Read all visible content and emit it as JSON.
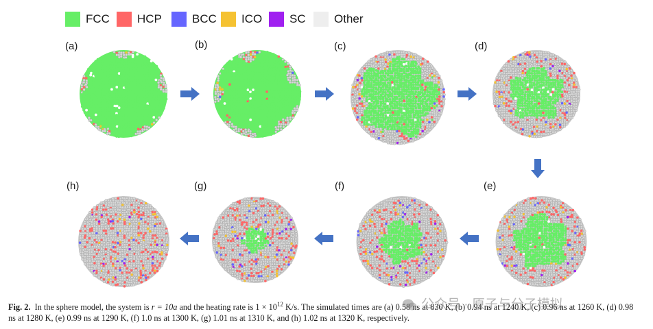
{
  "legend": [
    {
      "label": "FCC",
      "color": "#66ee66"
    },
    {
      "label": "HCP",
      "color": "#ff6666"
    },
    {
      "label": "BCC",
      "color": "#6666ff"
    },
    {
      "label": "ICO",
      "color": "#f5c232"
    },
    {
      "label": "SC",
      "color": "#a020f0"
    },
    {
      "label": "Other",
      "color": "#eeeeee"
    }
  ],
  "panels": [
    {
      "label": "(a)",
      "fcc_fraction": 0.98
    },
    {
      "label": "(b)",
      "fcc_fraction": 0.92
    },
    {
      "label": "(c)",
      "fcc_fraction": 0.78
    },
    {
      "label": "(d)",
      "fcc_fraction": 0.58
    },
    {
      "label": "(e)",
      "fcc_fraction": 0.57
    },
    {
      "label": "(f)",
      "fcc_fraction": 0.45
    },
    {
      "label": "(g)",
      "fcc_fraction": 0.28
    },
    {
      "label": "(h)",
      "fcc_fraction": 0.0
    }
  ],
  "caption": {
    "fig_label": "Fig. 2.",
    "text_before_r": "In the sphere model, the system is ",
    "r_expr": "r = 10a",
    "text_before_rate": " and the heating rate is ",
    "rate_mantissa": "1 × 10",
    "rate_exponent": "12",
    "rate_unit": " K/s.",
    "text_rest": " The simulated times are (a) 0.58 ns at 830 K, (b) 0.94 ns at 1240 K, (c) 0.96 ns at 1260 K, (d) 0.98 ns at 1280 K, (e) 0.99 ns at 1290 K, (f) 1.0 ns at 1300 K, (g) 1.01 ns at 1310 K, and (h) 1.02 ns at 1320 K, respectively."
  },
  "watermark": {
    "text": "公众号 · 原子与分子模拟"
  },
  "colors": {
    "arrow": "#4472c4",
    "atom_other": "#d8d8d8",
    "atom_other_edge": "#9a9a9a"
  }
}
